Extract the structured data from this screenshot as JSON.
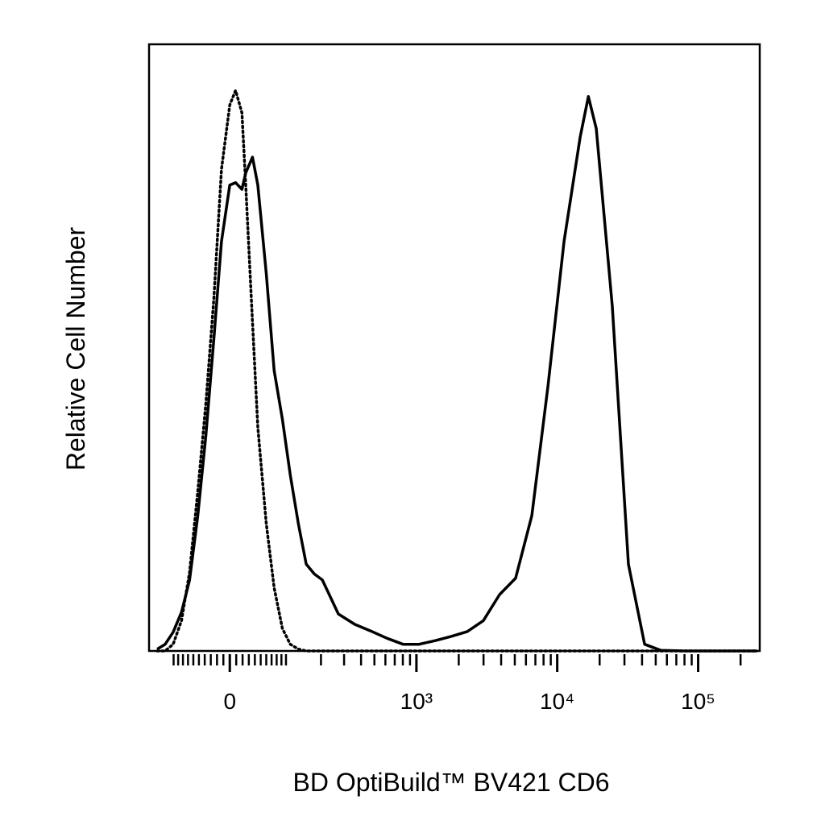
{
  "chart_data": {
    "type": "line",
    "xlabel": "BD OptiBuild™ BV421 CD6",
    "ylabel": "Relative Cell Number",
    "xscale": "arcsinh",
    "xscale_width": 95,
    "xlim": [
      -165,
      273600
    ],
    "xticks": [
      {
        "value": 0,
        "label": "0"
      },
      {
        "value": 1000,
        "label": "10³"
      },
      {
        "value": 10000,
        "label": "10⁴"
      },
      {
        "value": 100000,
        "label": "10⁵"
      }
    ],
    "xminor_ticks": [
      -100,
      -90,
      -80,
      -70,
      -60,
      -50,
      -40,
      -30,
      -20,
      -10,
      10,
      20,
      30,
      40,
      50,
      60,
      70,
      80,
      90,
      100,
      200,
      300,
      400,
      500,
      600,
      700,
      800,
      900,
      2000,
      3000,
      4000,
      5000,
      6000,
      7000,
      8000,
      9000,
      20000,
      30000,
      40000,
      50000,
      60000,
      70000,
      80000,
      90000,
      200000
    ],
    "ylim": [
      0,
      100
    ],
    "x": [
      -141,
      -120,
      -101,
      -83,
      -67,
      -52,
      -38,
      -25,
      -13,
      0,
      9,
      19,
      25,
      36,
      45,
      60,
      75,
      92,
      110,
      130,
      152,
      177,
      205,
      272,
      359,
      470,
      615,
      802,
      1045,
      1360,
      1770,
      2300,
      2990,
      3900,
      5070,
      6600,
      8590,
      11180,
      14550,
      16630,
      18940,
      24600,
      32000,
      41700,
      54200,
      80500,
      155400,
      262900
    ],
    "series": [
      {
        "color": "#000000",
        "line_style": "dotted",
        "values": [
          0,
          0,
          1.1,
          5.0,
          13.0,
          26.3,
          40.9,
          58.2,
          79.4,
          90.0,
          92.4,
          88.7,
          76.8,
          54.2,
          36.9,
          21.0,
          10.4,
          3.7,
          1.1,
          0.3,
          0,
          0,
          0,
          0,
          0,
          0,
          0,
          0,
          0,
          0,
          0,
          0,
          0,
          0,
          0,
          0,
          0,
          0,
          0,
          0,
          0,
          0,
          0,
          0,
          0,
          0,
          0,
          0
        ]
      },
      {
        "color": "#000000",
        "line_style": "solid",
        "values": [
          0.3,
          1.1,
          3.1,
          6.4,
          11.7,
          22.3,
          35.6,
          51.5,
          67.5,
          76.8,
          77.2,
          76.1,
          78.8,
          81.4,
          76.8,
          62.2,
          46.2,
          38.2,
          29.0,
          21.0,
          14.3,
          12.7,
          11.7,
          6.1,
          4.4,
          3.3,
          2.1,
          1.1,
          1.1,
          1.7,
          2.4,
          3.2,
          5.0,
          9.3,
          12.0,
          22.3,
          43.6,
          67.5,
          84.7,
          91.4,
          86.1,
          56.8,
          14.3,
          1.1,
          0.1,
          0,
          0,
          0
        ]
      }
    ]
  }
}
